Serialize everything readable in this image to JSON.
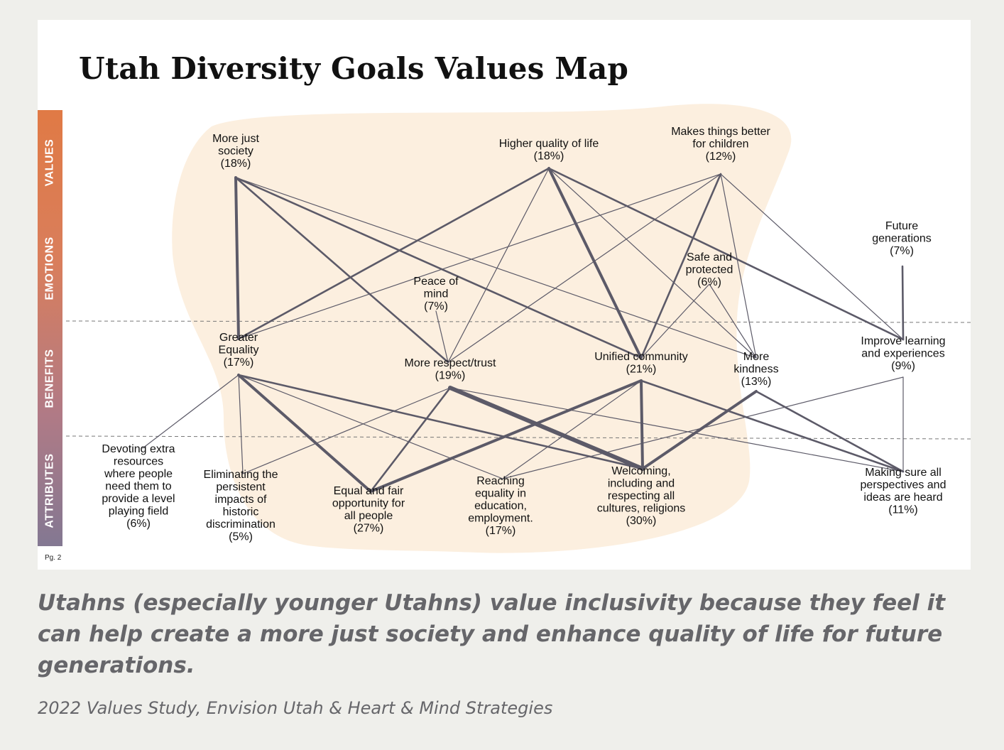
{
  "title": "Utah Diversity Goals Values Map",
  "levels": [
    "VALUES",
    "EMOTIONS",
    "BENEFITS",
    "ATTRIBUTES"
  ],
  "page_label": "Pg. 2",
  "colors": {
    "blob": "#fcefdf",
    "line": "#5c5a68",
    "divider": "#777777"
  },
  "nodes": [
    {
      "id": "more_just_society",
      "level": "VALUES",
      "lines": [
        "More just",
        "society",
        "(18%)"
      ]
    },
    {
      "id": "higher_quality",
      "level": "VALUES",
      "lines": [
        "Higher quality of life",
        "(18%)"
      ]
    },
    {
      "id": "better_children",
      "level": "VALUES",
      "lines": [
        "Makes things better",
        "for children",
        "(12%)"
      ]
    },
    {
      "id": "future_generations",
      "level": "VALUES",
      "lines": [
        "Future",
        "generations",
        "(7%)"
      ]
    },
    {
      "id": "safe_protected",
      "level": "EMOTIONS",
      "lines": [
        "Safe and",
        "protected",
        "(6%)"
      ]
    },
    {
      "id": "peace_of_mind",
      "level": "EMOTIONS",
      "lines": [
        "Peace of",
        "mind",
        "(7%)"
      ]
    },
    {
      "id": "greater_equality",
      "level": "BENEFITS",
      "lines": [
        "Greater",
        "Equality",
        "(17%)"
      ]
    },
    {
      "id": "more_respect",
      "level": "BENEFITS",
      "lines": [
        "More respect/trust",
        "(19%)"
      ]
    },
    {
      "id": "unified_community",
      "level": "BENEFITS",
      "lines": [
        "Unified community",
        "(21%)"
      ]
    },
    {
      "id": "more_kindness",
      "level": "BENEFITS",
      "lines": [
        "More",
        "kindness",
        "(13%)"
      ]
    },
    {
      "id": "improve_learning",
      "level": "BENEFITS",
      "lines": [
        "Improve learning",
        "and experiences",
        "(9%)"
      ]
    },
    {
      "id": "devoting_resources",
      "level": "ATTRIBUTES",
      "lines": [
        "Devoting extra",
        "resources",
        "where people",
        "need them to",
        "provide a level",
        "playing field",
        "(6%)"
      ]
    },
    {
      "id": "eliminating_discrimination",
      "level": "ATTRIBUTES",
      "lines": [
        "Eliminating the",
        "persistent",
        "impacts of",
        "historic",
        "discrimination",
        "(5%)"
      ]
    },
    {
      "id": "equal_opportunity",
      "level": "ATTRIBUTES",
      "lines": [
        "Equal and fair",
        "opportunity for",
        "all people",
        "(27%)"
      ]
    },
    {
      "id": "reaching_equality",
      "level": "ATTRIBUTES",
      "lines": [
        "Reaching",
        "equality in",
        "education,",
        "employment.",
        "(17%)"
      ]
    },
    {
      "id": "welcoming",
      "level": "ATTRIBUTES",
      "lines": [
        "Welcoming,",
        "including and",
        "respecting all",
        "cultures, religions",
        "(30%)"
      ]
    },
    {
      "id": "perspectives_heard",
      "level": "ATTRIBUTES",
      "lines": [
        "Making sure all",
        "perspectives and",
        "ideas are heard",
        "(11%)"
      ]
    }
  ],
  "links": [
    {
      "from": "more_just_society",
      "to": "greater_equality",
      "strength": 3
    },
    {
      "from": "more_just_society",
      "to": "more_respect",
      "strength": 2
    },
    {
      "from": "more_just_society",
      "to": "unified_community",
      "strength": 2
    },
    {
      "from": "more_just_society",
      "to": "more_kindness",
      "strength": 1
    },
    {
      "from": "higher_quality",
      "to": "greater_equality",
      "strength": 2
    },
    {
      "from": "higher_quality",
      "to": "more_respect",
      "strength": 1
    },
    {
      "from": "higher_quality",
      "to": "unified_community",
      "strength": 3
    },
    {
      "from": "higher_quality",
      "to": "more_kindness",
      "strength": 1
    },
    {
      "from": "higher_quality",
      "to": "improve_learning",
      "strength": 2
    },
    {
      "from": "better_children",
      "to": "greater_equality",
      "strength": 1
    },
    {
      "from": "better_children",
      "to": "more_respect",
      "strength": 1
    },
    {
      "from": "better_children",
      "to": "unified_community",
      "strength": 2
    },
    {
      "from": "better_children",
      "to": "more_kindness",
      "strength": 1
    },
    {
      "from": "better_children",
      "to": "improve_learning",
      "strength": 1
    },
    {
      "from": "future_generations",
      "to": "improve_learning",
      "strength": 2
    },
    {
      "from": "safe_protected",
      "to": "unified_community",
      "strength": 1
    },
    {
      "from": "safe_protected",
      "to": "more_kindness",
      "strength": 1
    },
    {
      "from": "peace_of_mind",
      "to": "more_respect",
      "strength": 1
    },
    {
      "from": "greater_equality",
      "to": "devoting_resources",
      "strength": 1
    },
    {
      "from": "greater_equality",
      "to": "eliminating_discrimination",
      "strength": 1
    },
    {
      "from": "greater_equality",
      "to": "equal_opportunity",
      "strength": 3
    },
    {
      "from": "greater_equality",
      "to": "reaching_equality",
      "strength": 1
    },
    {
      "from": "greater_equality",
      "to": "welcoming",
      "strength": 2
    },
    {
      "from": "more_respect",
      "to": "eliminating_discrimination",
      "strength": 1
    },
    {
      "from": "more_respect",
      "to": "equal_opportunity",
      "strength": 2
    },
    {
      "from": "more_respect",
      "to": "welcoming",
      "strength": 4
    },
    {
      "from": "more_respect",
      "to": "perspectives_heard",
      "strength": 1
    },
    {
      "from": "unified_community",
      "to": "equal_opportunity",
      "strength": 3
    },
    {
      "from": "unified_community",
      "to": "reaching_equality",
      "strength": 1
    },
    {
      "from": "unified_community",
      "to": "welcoming",
      "strength": 3
    },
    {
      "from": "unified_community",
      "to": "perspectives_heard",
      "strength": 2
    },
    {
      "from": "more_kindness",
      "to": "welcoming",
      "strength": 3
    },
    {
      "from": "more_kindness",
      "to": "perspectives_heard",
      "strength": 2
    },
    {
      "from": "improve_learning",
      "to": "reaching_equality",
      "strength": 1
    },
    {
      "from": "improve_learning",
      "to": "perspectives_heard",
      "strength": 1
    }
  ],
  "caption": "Utahns (especially younger Utahns) value inclusivity because they feel it can help create a more just society and enhance quality of life for future generations.",
  "source": "2022 Values Study, Envision Utah & Heart & Mind Strategies"
}
